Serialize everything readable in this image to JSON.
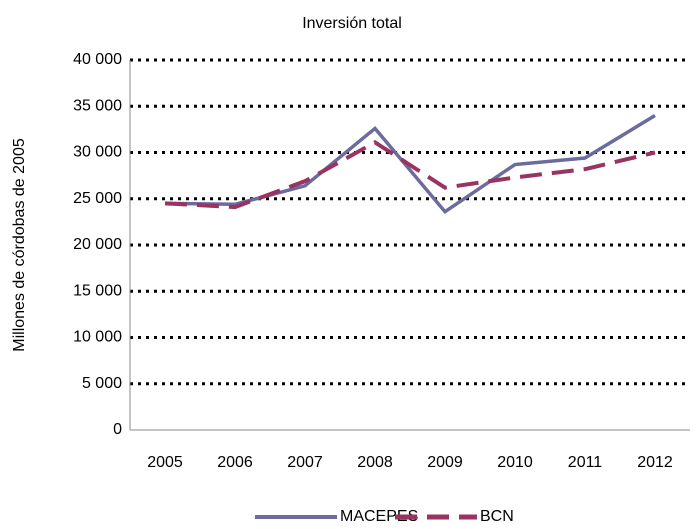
{
  "chart_data": {
    "type": "line",
    "title": "Inversión total",
    "y_label": "Millones de córdobas de 2005",
    "categories": [
      "2005",
      "2006",
      "2007",
      "2008",
      "2009",
      "2010",
      "2011",
      "2012"
    ],
    "series": [
      {
        "name": "MACEPES",
        "color": "#6b6b9e",
        "dashed": false,
        "values": [
          24500,
          24400,
          26400,
          32600,
          23600,
          28700,
          29400,
          34000
        ]
      },
      {
        "name": "BCN",
        "color": "#993360",
        "dashed": true,
        "values": [
          24500,
          24100,
          26900,
          31100,
          26200,
          27300,
          28200,
          30000
        ]
      }
    ],
    "ylim": [
      0,
      40000
    ],
    "yticks": [
      0,
      {
        "value": 5000,
        "label": "5 000"
      },
      {
        "value": 10000,
        "label": "10 000"
      },
      {
        "value": 15000,
        "label": "15 000"
      },
      {
        "value": 20000,
        "label": "20 000"
      },
      {
        "value": 25000,
        "label": "25 000"
      },
      {
        "value": 30000,
        "label": "30 000"
      },
      {
        "value": 35000,
        "label": "35 000"
      },
      {
        "value": 40000,
        "label": "40 000"
      }
    ],
    "grid": true,
    "legend": "bottom"
  }
}
